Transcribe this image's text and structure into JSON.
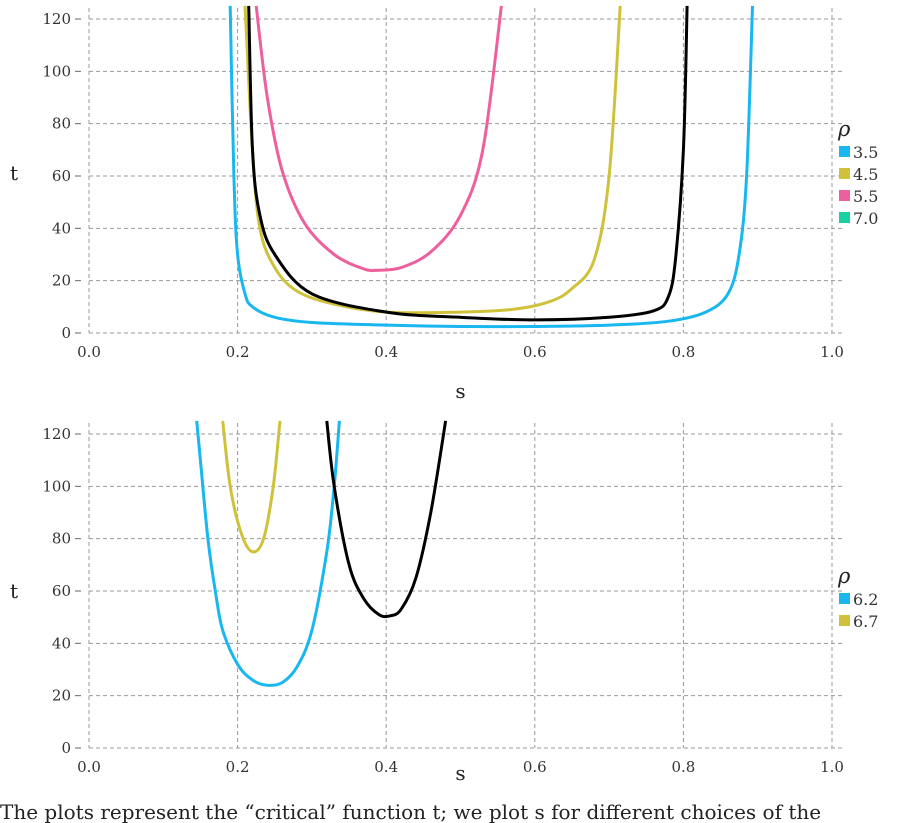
{
  "caption": "The plots represent the “critical” function t; we plot s for different choices of the",
  "chart_data": [
    {
      "type": "line",
      "xlabel": "s",
      "ylabel": "t",
      "xlim": [
        0.0,
        1.0
      ],
      "ylim": [
        0,
        125
      ],
      "xticks": [
        "0.0",
        "0.2",
        "0.4",
        "0.6",
        "0.8",
        "1.0"
      ],
      "yticks": [
        "0",
        "20",
        "40",
        "60",
        "80",
        "100",
        "120"
      ],
      "grid": true,
      "legend": {
        "title": "ρ",
        "position": "right",
        "entries": [
          {
            "label": "3.5",
            "color": "#19b7f0"
          },
          {
            "label": "4.5",
            "color": "#cfc23a"
          },
          {
            "label": "5.5",
            "color": "#ee5f9e"
          },
          {
            "label": "7.0",
            "color": "#1ad1a3"
          }
        ]
      },
      "series": [
        {
          "color": "#19b7f0",
          "points": [
            [
              0.19,
              125
            ],
            [
              0.195,
              60
            ],
            [
              0.2,
              30
            ],
            [
              0.21,
              15
            ],
            [
              0.22,
              10
            ],
            [
              0.25,
              6
            ],
            [
              0.3,
              4
            ],
            [
              0.4,
              3
            ],
            [
              0.5,
              2.5
            ],
            [
              0.6,
              2.5
            ],
            [
              0.7,
              3
            ],
            [
              0.78,
              4.5
            ],
            [
              0.83,
              8
            ],
            [
              0.86,
              15
            ],
            [
              0.875,
              30
            ],
            [
              0.885,
              60
            ],
            [
              0.893,
              125
            ]
          ]
        },
        {
          "color": "#cfc23a",
          "points": [
            [
              0.21,
              125
            ],
            [
              0.22,
              70
            ],
            [
              0.23,
              40
            ],
            [
              0.25,
              25
            ],
            [
              0.28,
              16
            ],
            [
              0.33,
              11
            ],
            [
              0.4,
              8
            ],
            [
              0.5,
              8
            ],
            [
              0.57,
              9
            ],
            [
              0.62,
              12
            ],
            [
              0.65,
              17
            ],
            [
              0.68,
              28
            ],
            [
              0.7,
              60
            ],
            [
              0.715,
              125
            ]
          ]
        },
        {
          "color": "#ee5f9e",
          "points": [
            [
              0.225,
              125
            ],
            [
              0.24,
              90
            ],
            [
              0.26,
              62
            ],
            [
              0.29,
              42
            ],
            [
              0.33,
              30
            ],
            [
              0.37,
              24.5
            ],
            [
              0.39,
              24
            ],
            [
              0.42,
              25
            ],
            [
              0.46,
              31
            ],
            [
              0.5,
              45
            ],
            [
              0.53,
              70
            ],
            [
              0.555,
              125
            ]
          ]
        },
        {
          "color": "#000000",
          "points": [
            [
              0.215,
              125
            ],
            [
              0.22,
              70
            ],
            [
              0.23,
              45
            ],
            [
              0.25,
              30
            ],
            [
              0.3,
              15
            ],
            [
              0.4,
              8
            ],
            [
              0.5,
              6
            ],
            [
              0.6,
              5
            ],
            [
              0.7,
              6
            ],
            [
              0.76,
              8.5
            ],
            [
              0.78,
              14
            ],
            [
              0.79,
              30
            ],
            [
              0.8,
              70
            ],
            [
              0.805,
              125
            ]
          ]
        }
      ]
    },
    {
      "type": "line",
      "xlabel": "s",
      "ylabel": "t",
      "xlim": [
        0.0,
        1.0
      ],
      "ylim": [
        0,
        125
      ],
      "xticks": [
        "0.0",
        "0.2",
        "0.4",
        "0.6",
        "0.8",
        "1.0"
      ],
      "yticks": [
        "0",
        "20",
        "40",
        "60",
        "80",
        "100",
        "120"
      ],
      "grid": true,
      "legend": {
        "title": "ρ",
        "position": "right",
        "entries": [
          {
            "label": "6.2",
            "color": "#19b7f0"
          },
          {
            "label": "6.7",
            "color": "#cfc23a"
          }
        ]
      },
      "series": [
        {
          "color": "#19b7f0",
          "points": [
            [
              0.145,
              125
            ],
            [
              0.15,
              110
            ],
            [
              0.16,
              80
            ],
            [
              0.17,
              60
            ],
            [
              0.18,
              45
            ],
            [
              0.2,
              32
            ],
            [
              0.22,
              26
            ],
            [
              0.24,
              24
            ],
            [
              0.26,
              25
            ],
            [
              0.28,
              31
            ],
            [
              0.3,
              45
            ],
            [
              0.32,
              75
            ],
            [
              0.33,
              100
            ],
            [
              0.337,
              125
            ]
          ]
        },
        {
          "color": "#cfc23a",
          "points": [
            [
              0.18,
              125
            ],
            [
              0.19,
              100
            ],
            [
              0.205,
              82
            ],
            [
              0.22,
              75
            ],
            [
              0.235,
              80
            ],
            [
              0.248,
              100
            ],
            [
              0.257,
              125
            ]
          ]
        },
        {
          "color": "#000000",
          "points": [
            [
              0.32,
              125
            ],
            [
              0.33,
              100
            ],
            [
              0.35,
              70
            ],
            [
              0.37,
              57
            ],
            [
              0.39,
              51
            ],
            [
              0.405,
              50.5
            ],
            [
              0.42,
              53
            ],
            [
              0.44,
              65
            ],
            [
              0.46,
              90
            ],
            [
              0.48,
              125
            ]
          ]
        }
      ]
    }
  ]
}
